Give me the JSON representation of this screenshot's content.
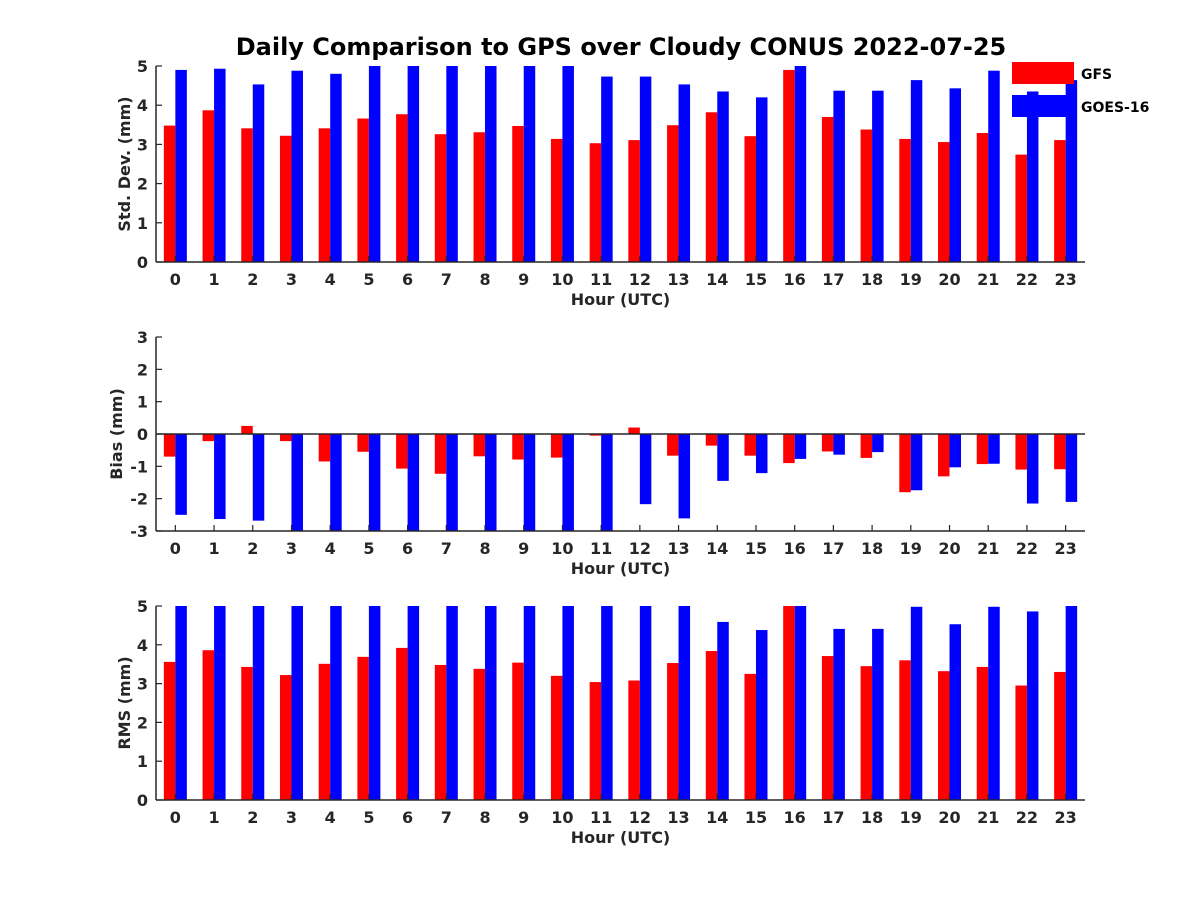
{
  "title": "Daily Comparison to GPS over Cloudy CONUS 2022-07-25",
  "colors": {
    "gfs": "#ff0000",
    "goes": "#0000ff",
    "axis": "#262626"
  },
  "legend": [
    {
      "label": "GFS",
      "color": "#ff0000"
    },
    {
      "label": "GOES-16",
      "color": "#0000ff"
    }
  ],
  "chart_data": [
    {
      "type": "bar",
      "name": "std-dev",
      "ylabel": "Std. Dev. (mm)",
      "xlabel": "Hour (UTC)",
      "ylim": [
        0,
        5
      ],
      "yticks": [
        0,
        1,
        2,
        3,
        4,
        5
      ],
      "categories": [
        "0",
        "1",
        "2",
        "3",
        "4",
        "5",
        "6",
        "7",
        "8",
        "9",
        "10",
        "11",
        "12",
        "13",
        "14",
        "15",
        "16",
        "17",
        "18",
        "19",
        "20",
        "21",
        "22",
        "23"
      ],
      "series": [
        {
          "name": "GFS",
          "values": [
            3.48,
            3.87,
            3.41,
            3.22,
            3.41,
            3.66,
            3.77,
            3.26,
            3.31,
            3.47,
            3.14,
            3.03,
            3.11,
            3.49,
            3.82,
            3.21,
            4.9,
            3.7,
            3.38,
            3.14,
            3.06,
            3.29,
            2.74,
            3.11
          ]
        },
        {
          "name": "GOES-16",
          "values": [
            4.9,
            4.93,
            4.53,
            4.88,
            4.8,
            5.0,
            5.0,
            5.0,
            5.0,
            5.0,
            5.0,
            4.73,
            4.73,
            4.53,
            4.35,
            4.2,
            5.0,
            4.37,
            4.37,
            4.64,
            4.43,
            4.88,
            4.35,
            4.64
          ]
        }
      ]
    },
    {
      "type": "bar",
      "name": "bias",
      "ylabel": "Bias (mm)",
      "xlabel": "Hour (UTC)",
      "ylim": [
        -3,
        3
      ],
      "yticks": [
        -3,
        -2,
        -1,
        0,
        1,
        2,
        3
      ],
      "categories": [
        "0",
        "1",
        "2",
        "3",
        "4",
        "5",
        "6",
        "7",
        "8",
        "9",
        "10",
        "11",
        "12",
        "13",
        "14",
        "15",
        "16",
        "17",
        "18",
        "19",
        "20",
        "21",
        "22",
        "23"
      ],
      "series": [
        {
          "name": "GFS",
          "values": [
            -0.7,
            -0.22,
            0.25,
            -0.22,
            -0.85,
            -0.55,
            -1.07,
            -1.23,
            -0.69,
            -0.79,
            -0.73,
            -0.05,
            0.2,
            -0.67,
            -0.36,
            -0.67,
            -0.9,
            -0.54,
            -0.74,
            -1.8,
            -1.31,
            -0.93,
            -1.1,
            -1.09
          ]
        },
        {
          "name": "GOES-16",
          "values": [
            -2.5,
            -2.63,
            -2.68,
            -3.0,
            -3.0,
            -3.0,
            -3.0,
            -3.0,
            -3.0,
            -3.0,
            -3.0,
            -3.0,
            -2.17,
            -2.61,
            -1.45,
            -1.21,
            -0.77,
            -0.64,
            -0.56,
            -1.74,
            -1.03,
            -0.92,
            -2.15,
            -2.1
          ]
        }
      ]
    },
    {
      "type": "bar",
      "name": "rms",
      "ylabel": "RMS (mm)",
      "xlabel": "Hour (UTC)",
      "ylim": [
        0,
        5
      ],
      "yticks": [
        0,
        1,
        2,
        3,
        4,
        5
      ],
      "categories": [
        "0",
        "1",
        "2",
        "3",
        "4",
        "5",
        "6",
        "7",
        "8",
        "9",
        "10",
        "11",
        "12",
        "13",
        "14",
        "15",
        "16",
        "17",
        "18",
        "19",
        "20",
        "21",
        "22",
        "23"
      ],
      "series": [
        {
          "name": "GFS",
          "values": [
            3.56,
            3.86,
            3.43,
            3.22,
            3.51,
            3.69,
            3.92,
            3.48,
            3.38,
            3.54,
            3.2,
            3.04,
            3.08,
            3.53,
            3.84,
            3.25,
            5.0,
            3.71,
            3.45,
            3.6,
            3.32,
            3.43,
            2.95,
            3.3
          ]
        },
        {
          "name": "GOES-16",
          "values": [
            5.0,
            5.0,
            5.0,
            5.0,
            5.0,
            5.0,
            5.0,
            5.0,
            5.0,
            5.0,
            5.0,
            5.0,
            5.0,
            5.0,
            4.59,
            4.38,
            5.0,
            4.41,
            4.41,
            4.98,
            4.53,
            4.98,
            4.86,
            5.0
          ]
        }
      ]
    }
  ]
}
